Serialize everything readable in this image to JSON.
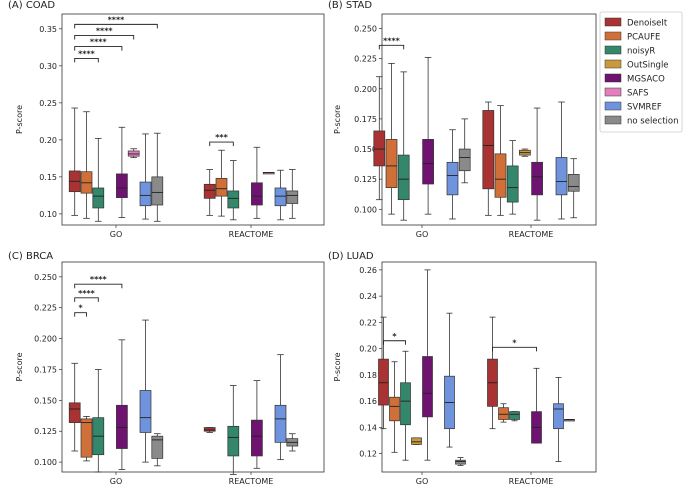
{
  "chart_data": [
    {
      "type": "boxplot",
      "title": "(A) COAD",
      "ylabel": "P-score",
      "ylim": [
        0.085,
        0.37
      ],
      "yticks": [
        0.1,
        0.15,
        0.2,
        0.25,
        0.3,
        0.35
      ],
      "ytick_labels": [
        "0.10",
        "0.15",
        "0.20",
        "0.25",
        "0.30",
        "0.35"
      ],
      "categories": [
        "GO",
        "REACTOME"
      ],
      "series": [
        {
          "name": "DenoiseIt",
          "boxes": [
            [
              0.098,
              0.13,
              0.144,
              0.158,
              0.243
            ],
            [
              0.098,
              0.121,
              0.132,
              0.14,
              0.16
            ]
          ]
        },
        {
          "name": "PCAUFE",
          "boxes": [
            [
              0.094,
              0.128,
              0.142,
              0.157,
              0.238
            ],
            [
              0.097,
              0.124,
              0.134,
              0.148,
              0.186
            ]
          ]
        },
        {
          "name": "noisyR",
          "boxes": [
            [
              0.09,
              0.108,
              0.124,
              0.135,
              0.202
            ],
            [
              0.092,
              0.108,
              0.121,
              0.131,
              0.172
            ]
          ]
        },
        {
          "name": "OutSingle",
          "boxes": [
            null,
            null
          ]
        },
        {
          "name": "MGSACO",
          "boxes": [
            [
              0.095,
              0.122,
              0.135,
              0.154,
              0.217
            ],
            [
              0.094,
              0.112,
              0.124,
              0.142,
              0.19
            ]
          ]
        },
        {
          "name": "SAFS",
          "boxes": [
            [
              0.176,
              0.178,
              0.181,
              0.185,
              0.188
            ],
            [
              0.156,
              0.156,
              0.156,
              0.156,
              0.156
            ]
          ]
        },
        {
          "name": "SVMREF",
          "boxes": [
            [
              0.093,
              0.111,
              0.125,
              0.143,
              0.208
            ],
            [
              0.092,
              0.111,
              0.124,
              0.135,
              0.159
            ]
          ]
        },
        {
          "name": "no selection",
          "boxes": [
            [
              0.09,
              0.112,
              0.129,
              0.15,
              0.209
            ],
            [
              0.094,
              0.114,
              0.125,
              0.131,
              0.16
            ]
          ]
        }
      ],
      "significance": [
        {
          "category": 0,
          "from": "DenoiseIt",
          "to": "noisyR",
          "label": "****",
          "y": 0.31
        },
        {
          "category": 0,
          "from": "DenoiseIt",
          "to": "MGSACO",
          "label": "****",
          "y": 0.326
        },
        {
          "category": 0,
          "from": "DenoiseIt",
          "to": "SAFS",
          "label": "****",
          "y": 0.341
        },
        {
          "category": 0,
          "from": "DenoiseIt",
          "to": "no selection",
          "label": "****",
          "y": 0.356
        },
        {
          "category": 1,
          "from": "DenoiseIt",
          "to": "noisyR",
          "label": "***",
          "y": 0.197
        }
      ]
    },
    {
      "type": "boxplot",
      "title": "(B) STAD",
      "ylabel": "P-score",
      "ylim": [
        0.087,
        0.262
      ],
      "yticks": [
        0.1,
        0.125,
        0.15,
        0.175,
        0.2,
        0.225,
        0.25
      ],
      "ytick_labels": [
        "0.100",
        "0.125",
        "0.150",
        "0.175",
        "0.200",
        "0.225",
        "0.250"
      ],
      "categories": [
        "GO",
        "REACTOME"
      ],
      "series": [
        {
          "name": "DenoiseIt",
          "boxes": [
            [
              0.108,
              0.136,
              0.15,
              0.165,
              0.21
            ],
            [
              0.095,
              0.117,
              0.153,
              0.182,
              0.189
            ]
          ]
        },
        {
          "name": "PCAUFE",
          "boxes": [
            [
              0.096,
              0.118,
              0.136,
              0.158,
              0.221
            ],
            [
              0.095,
              0.11,
              0.125,
              0.146,
              0.186
            ]
          ]
        },
        {
          "name": "noisyR",
          "boxes": [
            [
              0.091,
              0.108,
              0.125,
              0.145,
              0.214
            ],
            [
              0.096,
              0.106,
              0.118,
              0.136,
              0.157
            ]
          ]
        },
        {
          "name": "OutSingle",
          "boxes": [
            null,
            [
              0.144,
              0.145,
              0.147,
              0.149,
              0.15
            ]
          ]
        },
        {
          "name": "MGSACO",
          "boxes": [
            [
              0.096,
              0.121,
              0.138,
              0.158,
              0.226
            ],
            [
              0.091,
              0.112,
              0.127,
              0.139,
              0.184
            ]
          ]
        },
        {
          "name": "SAFS",
          "boxes": [
            null,
            null
          ]
        },
        {
          "name": "SVMREF",
          "boxes": [
            [
              0.092,
              0.112,
              0.128,
              0.139,
              0.166
            ],
            [
              0.092,
              0.112,
              0.123,
              0.143,
              0.189
            ]
          ]
        },
        {
          "name": "no selection",
          "boxes": [
            [
              0.122,
              0.132,
              0.143,
              0.15,
              0.175
            ],
            [
              0.093,
              0.115,
              0.119,
              0.129,
              0.142
            ]
          ]
        }
      ],
      "significance": [
        {
          "category": 0,
          "from": "DenoiseIt",
          "to": "noisyR",
          "label": "****",
          "y": 0.236
        }
      ]
    },
    {
      "type": "boxplot",
      "title": "(C) BRCA",
      "ylabel": "P-score",
      "ylim": [
        0.092,
        0.262
      ],
      "yticks": [
        0.1,
        0.125,
        0.15,
        0.175,
        0.2,
        0.225,
        0.25
      ],
      "ytick_labels": [
        "0.100",
        "0.125",
        "0.150",
        "0.175",
        "0.200",
        "0.225",
        "0.250"
      ],
      "categories": [
        "GO",
        "REACTOME"
      ],
      "series": [
        {
          "name": "DenoiseIt",
          "boxes": [
            [
              0.109,
              0.132,
              0.143,
              0.148,
              0.18
            ],
            [
              0.124,
              0.125,
              0.126,
              0.128,
              0.128
            ]
          ]
        },
        {
          "name": "PCAUFE",
          "boxes": [
            [
              0.101,
              0.104,
              0.132,
              0.135,
              0.137
            ],
            null
          ]
        },
        {
          "name": "noisyR",
          "boxes": [
            [
              0.092,
              0.106,
              0.121,
              0.136,
              0.175
            ],
            [
              0.09,
              0.105,
              0.12,
              0.129,
              0.162
            ]
          ]
        },
        {
          "name": "OutSingle",
          "boxes": [
            null,
            null
          ]
        },
        {
          "name": "MGSACO",
          "boxes": [
            [
              0.094,
              0.111,
              0.128,
              0.146,
              0.199
            ],
            [
              0.095,
              0.105,
              0.121,
              0.134,
              0.166
            ]
          ]
        },
        {
          "name": "SAFS",
          "boxes": [
            null,
            null
          ]
        },
        {
          "name": "SVMREF",
          "boxes": [
            [
              0.1,
              0.124,
              0.136,
              0.158,
              0.215
            ],
            [
              0.102,
              0.116,
              0.135,
              0.146,
              0.187
            ]
          ]
        },
        {
          "name": "no selection",
          "boxes": [
            [
              0.097,
              0.103,
              0.118,
              0.121,
              0.123
            ],
            [
              0.109,
              0.113,
              0.116,
              0.119,
              0.123
            ]
          ]
        }
      ],
      "significance": [
        {
          "category": 0,
          "from": "DenoiseIt",
          "to": "PCAUFE",
          "label": "*",
          "y": 0.221
        },
        {
          "category": 0,
          "from": "DenoiseIt",
          "to": "noisyR",
          "label": "****",
          "y": 0.233
        },
        {
          "category": 0,
          "from": "DenoiseIt",
          "to": "MGSACO",
          "label": "****",
          "y": 0.244
        }
      ]
    },
    {
      "type": "boxplot",
      "title": "(D) LUAD",
      "ylabel": "P-score",
      "ylim": [
        0.106,
        0.266
      ],
      "yticks": [
        0.12,
        0.14,
        0.16,
        0.18,
        0.2,
        0.22,
        0.24,
        0.26
      ],
      "ytick_labels": [
        "0.12",
        "0.14",
        "0.16",
        "0.18",
        "0.20",
        "0.22",
        "0.24",
        "0.26"
      ],
      "categories": [
        "GO",
        "REACTOME"
      ],
      "series": [
        {
          "name": "DenoiseIt",
          "boxes": [
            [
              0.139,
              0.157,
              0.174,
              0.192,
              0.224
            ],
            [
              0.139,
              0.156,
              0.174,
              0.192,
              0.224
            ]
          ]
        },
        {
          "name": "PCAUFE",
          "boxes": [
            [
              0.121,
              0.145,
              0.156,
              0.163,
              0.19
            ],
            [
              0.144,
              0.146,
              0.15,
              0.155,
              0.158
            ]
          ]
        },
        {
          "name": "noisyR",
          "boxes": [
            [
              0.115,
              0.142,
              0.16,
              0.174,
              0.198
            ],
            [
              0.145,
              0.146,
              0.15,
              0.152,
              0.152
            ]
          ]
        },
        {
          "name": "OutSingle",
          "boxes": [
            [
              0.127,
              0.127,
              0.129,
              0.132,
              0.132
            ],
            null
          ]
        },
        {
          "name": "MGSACO",
          "boxes": [
            [
              0.115,
              0.148,
              0.166,
              0.194,
              0.26
            ],
            [
              0.128,
              0.128,
              0.14,
              0.152,
              0.185
            ]
          ]
        },
        {
          "name": "SAFS",
          "boxes": [
            null,
            null
          ]
        },
        {
          "name": "SVMREF",
          "boxes": [
            [
              0.125,
              0.139,
              0.159,
              0.179,
              0.227
            ],
            [
              0.114,
              0.139,
              0.154,
              0.158,
              0.178
            ]
          ]
        },
        {
          "name": "no selection",
          "boxes": [
            [
              0.111,
              0.112,
              0.114,
              0.115,
              0.117
            ],
            [
              0.146,
              0.146,
              0.146,
              0.146,
              0.146
            ]
          ]
        }
      ],
      "significance": [
        {
          "category": 0,
          "from": "DenoiseIt",
          "to": "noisyR",
          "label": "*",
          "y": 0.206
        },
        {
          "category": 1,
          "from": "DenoiseIt",
          "to": "MGSACO",
          "label": "*",
          "y": 0.201
        }
      ]
    }
  ],
  "legend": [
    {
      "name": "DenoiseIt",
      "color": "#a93332"
    },
    {
      "name": "PCAUFE",
      "color": "#d06f37"
    },
    {
      "name": "noisyR",
      "color": "#34876b"
    },
    {
      "name": "OutSingle",
      "color": "#c99a3c"
    },
    {
      "name": "MGSACO",
      "color": "#6e1370"
    },
    {
      "name": "SAFS",
      "color": "#e47fbb"
    },
    {
      "name": "SVMREF",
      "color": "#6f93dc"
    },
    {
      "name": "no selection",
      "color": "#8a8a8a"
    }
  ]
}
